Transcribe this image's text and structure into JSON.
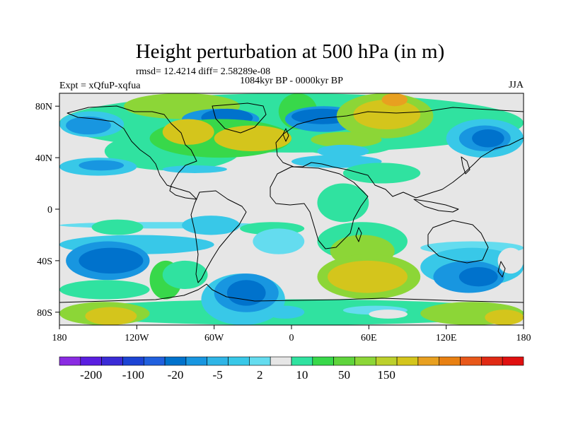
{
  "title": "Height perturbation at 500 hPa (in m)",
  "stats": "rmsd= 12.4214 diff= 2.58289e-08",
  "period": "1084kyr BP - 0000kyr BP",
  "expt": "Expt = xQfuP-xqfua",
  "season": "JJA",
  "map": {
    "lat_ticks": [
      {
        "label": "80N",
        "lat": 80
      },
      {
        "label": "40N",
        "lat": 40
      },
      {
        "label": "0",
        "lat": 0
      },
      {
        "label": "40S",
        "lat": -40
      },
      {
        "label": "80S",
        "lat": -80
      }
    ],
    "lon_ticks": [
      {
        "label": "180",
        "lon": -180
      },
      {
        "label": "120W",
        "lon": -120
      },
      {
        "label": "60W",
        "lon": -60
      },
      {
        "label": "0",
        "lon": 0
      },
      {
        "label": "60E",
        "lon": 60
      },
      {
        "label": "120E",
        "lon": 120
      },
      {
        "label": "180",
        "lon": 180
      }
    ],
    "lat_range": [
      -90,
      90
    ],
    "lon_range": [
      -180,
      180
    ],
    "colors": {
      "-5": "#0072cc",
      "-4": "#1896e0",
      "-3": "#2fb5e6",
      "-2": "#38c8e8",
      "-1": "#64dcef",
      "0": "#e6e6e6",
      "1": "#30e2a0",
      "2": "#38d84a",
      "3": "#8cd637",
      "4": "#d4c51c",
      "5": "#e8a020"
    },
    "regions": [
      {
        "lon": -180,
        "lat": -70,
        "lon2": 180,
        "lat2": -90,
        "cls": 1
      },
      {
        "lon": -180,
        "lat": 90,
        "lon2": 180,
        "lat2": 44,
        "cls": 1
      },
      {
        "lon": -145,
        "lat": 30,
        "lon2": -40,
        "lat2": 60,
        "cls": 1
      },
      {
        "lon": -130,
        "lat": 70,
        "lon2": -40,
        "lat2": 90,
        "cls": 3
      },
      {
        "lon": -85,
        "lat": 78,
        "lon2": -25,
        "lat2": 62,
        "cls": -4
      },
      {
        "lon": -70,
        "lat": 78,
        "lon2": -30,
        "lat2": 64,
        "cls": -5
      },
      {
        "lon": -10,
        "lat": 90,
        "lon2": 20,
        "lat2": 62,
        "cls": 2
      },
      {
        "lon": -110,
        "lat": 70,
        "lon2": 0,
        "lat2": 40,
        "cls": 2
      },
      {
        "lon": -60,
        "lat": 65,
        "lon2": 0,
        "lat2": 45,
        "cls": 4
      },
      {
        "lon": -100,
        "lat": 70,
        "lon2": -60,
        "lat2": 50,
        "cls": 4
      },
      {
        "lon": -5,
        "lat": 80,
        "lon2": 55,
        "lat2": 60,
        "cls": -4
      },
      {
        "lon": 0,
        "lat": 78,
        "lon2": 48,
        "lat2": 66,
        "cls": -5
      },
      {
        "lon": 35,
        "lat": 90,
        "lon2": 110,
        "lat2": 55,
        "cls": 3
      },
      {
        "lon": 48,
        "lat": 85,
        "lon2": 100,
        "lat2": 62,
        "cls": 4
      },
      {
        "lon": 70,
        "lat": 90,
        "lon2": 90,
        "lat2": 80,
        "cls": 5
      },
      {
        "lon": 5,
        "lat": 58,
        "lon2": 80,
        "lat2": 42,
        "cls": 1
      },
      {
        "lon": 15,
        "lat": 60,
        "lon2": 70,
        "lat2": 48,
        "cls": 3
      },
      {
        "lon": 120,
        "lat": 70,
        "lon2": 180,
        "lat2": 40,
        "cls": -2
      },
      {
        "lon": 130,
        "lat": 65,
        "lon2": 170,
        "lat2": 45,
        "cls": -4
      },
      {
        "lon": 140,
        "lat": 62,
        "lon2": 165,
        "lat2": 48,
        "cls": -5
      },
      {
        "lon": -180,
        "lat": 76,
        "lon2": -130,
        "lat2": 56,
        "cls": -2
      },
      {
        "lon": -175,
        "lat": 72,
        "lon2": -140,
        "lat2": 58,
        "cls": -4
      },
      {
        "lon": -180,
        "lat": 40,
        "lon2": -120,
        "lat2": 26,
        "cls": -2
      },
      {
        "lon": -165,
        "lat": 38,
        "lon2": -130,
        "lat2": 30,
        "cls": -4
      },
      {
        "lon": -100,
        "lat": 34,
        "lon2": -50,
        "lat2": 28,
        "cls": -2
      },
      {
        "lon": 0,
        "lat": 42,
        "lon2": 70,
        "lat2": 32,
        "cls": -2
      },
      {
        "lon": 20,
        "lat": 50,
        "lon2": 60,
        "lat2": 40,
        "cls": -2
      },
      {
        "lon": 40,
        "lat": 36,
        "lon2": 100,
        "lat2": 20,
        "cls": 1
      },
      {
        "lon": 20,
        "lat": 20,
        "lon2": 60,
        "lat2": -10,
        "cls": 1
      },
      {
        "lon": -180,
        "lat": -10,
        "lon2": -20,
        "lat2": -15,
        "cls": -1
      },
      {
        "lon": -155,
        "lat": -8,
        "lon2": -115,
        "lat2": -20,
        "cls": 1
      },
      {
        "lon": -85,
        "lat": -5,
        "lon2": -40,
        "lat2": -20,
        "cls": -2
      },
      {
        "lon": -40,
        "lat": -10,
        "lon2": 10,
        "lat2": -20,
        "cls": 1
      },
      {
        "lon": -30,
        "lat": -15,
        "lon2": 10,
        "lat2": -35,
        "cls": -1
      },
      {
        "lon": 20,
        "lat": -10,
        "lon2": 90,
        "lat2": -40,
        "cls": 1
      },
      {
        "lon": 30,
        "lat": -20,
        "lon2": 80,
        "lat2": -45,
        "cls": 3
      },
      {
        "lon": 20,
        "lat": -35,
        "lon2": 100,
        "lat2": -70,
        "cls": 3
      },
      {
        "lon": 28,
        "lat": -40,
        "lon2": 90,
        "lat2": -65,
        "cls": 4
      },
      {
        "lon": 100,
        "lat": -25,
        "lon2": 180,
        "lat2": -35,
        "cls": -1
      },
      {
        "lon": 100,
        "lat": -30,
        "lon2": 180,
        "lat2": -60,
        "cls": -2
      },
      {
        "lon": 110,
        "lat": -40,
        "lon2": 165,
        "lat2": -65,
        "cls": -4
      },
      {
        "lon": 130,
        "lat": -45,
        "lon2": 160,
        "lat2": -60,
        "cls": -5
      },
      {
        "lon": 160,
        "lat": -30,
        "lon2": 180,
        "lat2": -50,
        "cls": 0
      },
      {
        "lon": -180,
        "lat": -20,
        "lon2": -60,
        "lat2": -35,
        "cls": -2
      },
      {
        "lon": -175,
        "lat": -25,
        "lon2": -110,
        "lat2": -55,
        "cls": -4
      },
      {
        "lon": -165,
        "lat": -30,
        "lon2": -115,
        "lat2": -50,
        "cls": -5
      },
      {
        "lon": -180,
        "lat": -55,
        "lon2": -110,
        "lat2": -70,
        "cls": 1
      },
      {
        "lon": -110,
        "lat": -40,
        "lon2": -85,
        "lat2": -70,
        "cls": 2
      },
      {
        "lon": -100,
        "lat": -40,
        "lon2": -65,
        "lat2": -62,
        "cls": 1
      },
      {
        "lon": -70,
        "lat": -50,
        "lon2": -5,
        "lat2": -90,
        "cls": -2
      },
      {
        "lon": -60,
        "lat": -50,
        "lon2": -10,
        "lat2": -80,
        "cls": -4
      },
      {
        "lon": -50,
        "lat": -55,
        "lon2": -20,
        "lat2": -75,
        "cls": -5
      },
      {
        "lon": -180,
        "lat": -72,
        "lon2": -110,
        "lat2": -90,
        "cls": 3
      },
      {
        "lon": -160,
        "lat": -76,
        "lon2": -120,
        "lat2": -90,
        "cls": 4
      },
      {
        "lon": 100,
        "lat": -72,
        "lon2": 180,
        "lat2": -90,
        "cls": 3
      },
      {
        "lon": 150,
        "lat": -78,
        "lon2": 180,
        "lat2": -90,
        "cls": 4
      },
      {
        "lon": 40,
        "lat": -75,
        "lon2": 90,
        "lat2": -82,
        "cls": -1
      },
      {
        "lon": 60,
        "lat": -78,
        "lon2": 90,
        "lat2": -85,
        "cls": 0
      },
      {
        "lon": -20,
        "lat": -75,
        "lon2": 10,
        "lat2": -85,
        "cls": -2
      }
    ]
  },
  "colorbar": {
    "labels": [
      "-200",
      "-100",
      "-20",
      "-5",
      "2",
      "10",
      "50",
      "150"
    ],
    "colors": [
      "#8a2be2",
      "#5a1ee0",
      "#3a2bd6",
      "#1c44d4",
      "#2060de",
      "#0072cc",
      "#1896e0",
      "#2fb5e6",
      "#38c8e8",
      "#64dcef",
      "#e6e6e6",
      "#30e2a0",
      "#38d84a",
      "#5fd43c",
      "#8cd637",
      "#bcd02c",
      "#d4c51c",
      "#e8a020",
      "#e88012",
      "#e8581a",
      "#e02a14",
      "#e01010"
    ]
  }
}
